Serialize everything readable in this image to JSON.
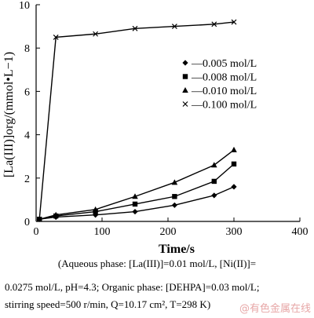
{
  "chart_data": {
    "type": "line",
    "xlabel": "Time/s",
    "ylabel": "[La(III)]org/(mmol•L−1)",
    "xlim": [
      0,
      400
    ],
    "ylim": [
      0,
      10
    ],
    "x_ticks": [
      "0",
      "100",
      "200",
      "300",
      "400"
    ],
    "y_ticks": [
      "0",
      "2",
      "4",
      "6",
      "8",
      "10"
    ],
    "legend_position": "center-right",
    "grid": false,
    "series": [
      {
        "name": "—0.005 mol/L",
        "marker": "diamond",
        "x": [
          5,
          30,
          90,
          150,
          210,
          270,
          300
        ],
        "y": [
          0.1,
          0.2,
          0.3,
          0.45,
          0.75,
          1.2,
          1.6
        ]
      },
      {
        "name": "—0.008 mol/L",
        "marker": "square",
        "x": [
          5,
          30,
          90,
          150,
          210,
          270,
          300
        ],
        "y": [
          0.1,
          0.25,
          0.45,
          0.8,
          1.15,
          1.85,
          2.65
        ]
      },
      {
        "name": "—0.010 mol/L",
        "marker": "triangle",
        "x": [
          5,
          30,
          90,
          150,
          210,
          270,
          300
        ],
        "y": [
          0.1,
          0.3,
          0.55,
          1.15,
          1.8,
          2.6,
          3.3
        ]
      },
      {
        "name": "—0.100 mol/L",
        "marker": "x",
        "x": [
          5,
          30,
          90,
          150,
          210,
          270,
          300
        ],
        "y": [
          0.1,
          8.5,
          8.65,
          8.9,
          9.0,
          9.1,
          9.2
        ]
      }
    ]
  },
  "caption": {
    "line1": "(Aqueous phase: [La(III)]=0.01 mol/L, [Ni(II)]=",
    "line2": "0.0275 mol/L, pH=4.3; Organic phase: [DEHPA]=0.03 mol/L;",
    "line3": "stirring speed=500 r/min, Q=10.17 cm², T=298 K)"
  },
  "watermark": "@有色金属在线",
  "colors": {
    "line": "#000000",
    "background": "#ffffff"
  }
}
